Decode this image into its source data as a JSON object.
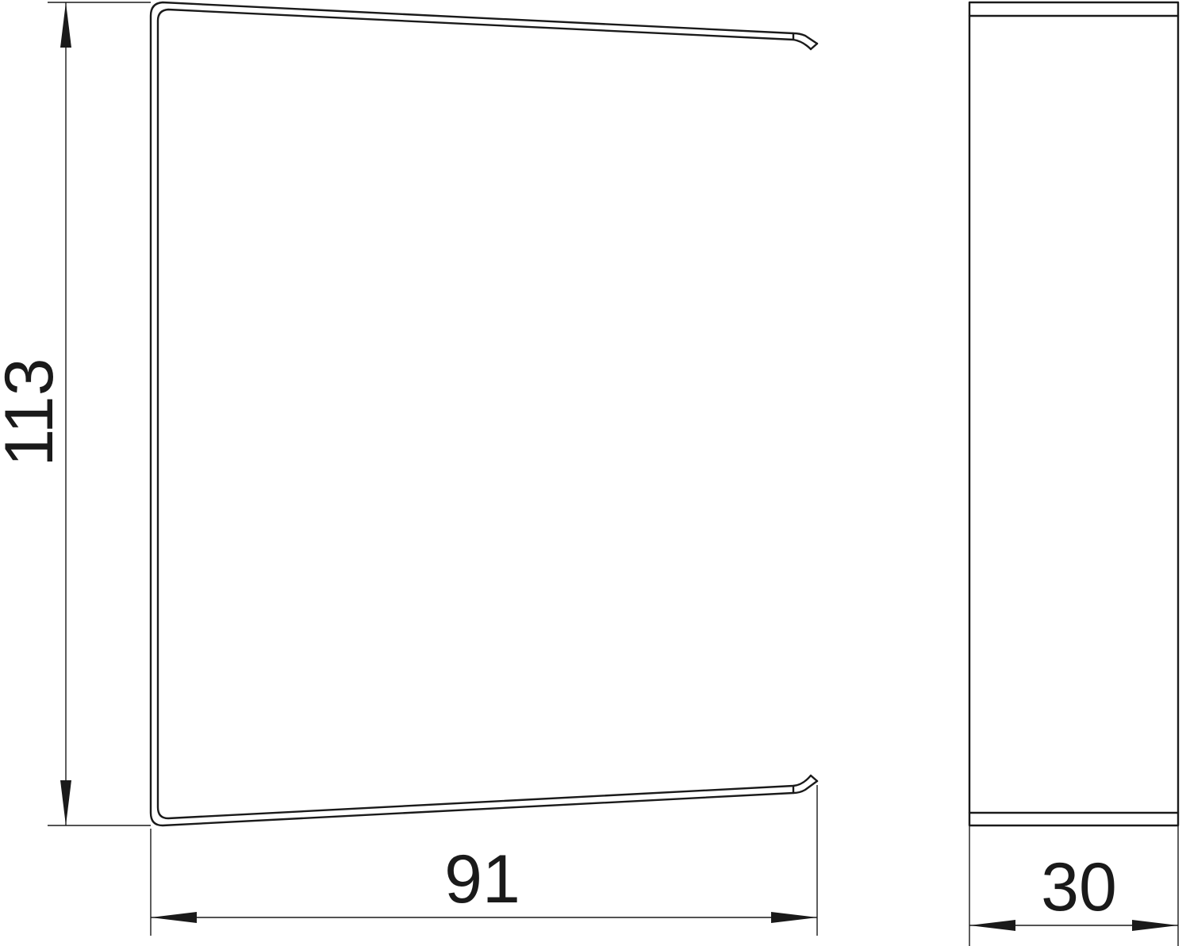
{
  "dimensions": {
    "height": "113",
    "width": "91",
    "depth": "30"
  },
  "line_color": "#1a1a1a"
}
